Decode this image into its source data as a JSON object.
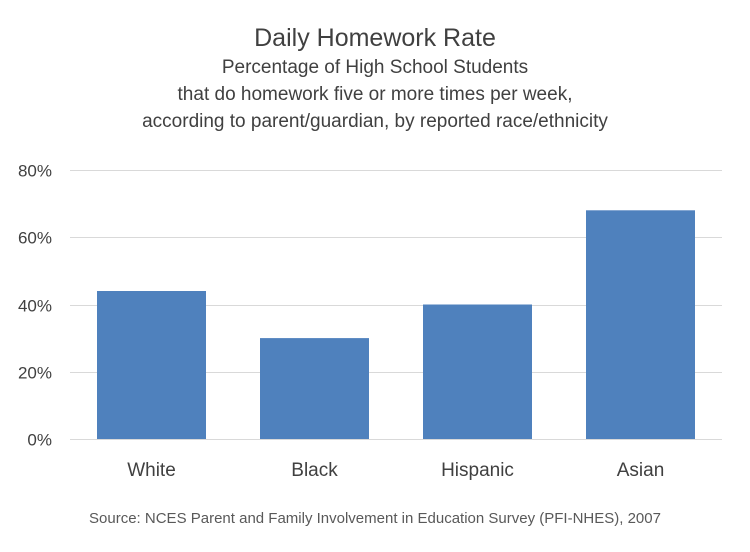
{
  "chart_data": {
    "type": "bar",
    "title": "Daily Homework Rate",
    "subtitle": [
      "Percentage of High School Students",
      "that do homework five or more times per week,",
      "according to parent/guardian, by reported race/ethnicity"
    ],
    "categories": [
      "White",
      "Black",
      "Hispanic",
      "Asian"
    ],
    "values": [
      44,
      30,
      40,
      68
    ],
    "value_unit": "%",
    "ylim": [
      0,
      80
    ],
    "yticks": [
      0,
      20,
      40,
      60,
      80
    ],
    "ytick_labels": [
      "0%",
      "20%",
      "40%",
      "60%",
      "80%"
    ],
    "grid": true,
    "legend": "none",
    "bar_color": "#4f81bd",
    "source": "Source: NCES Parent and Family Involvement in Education Survey (PFI-NHES), 2007"
  }
}
